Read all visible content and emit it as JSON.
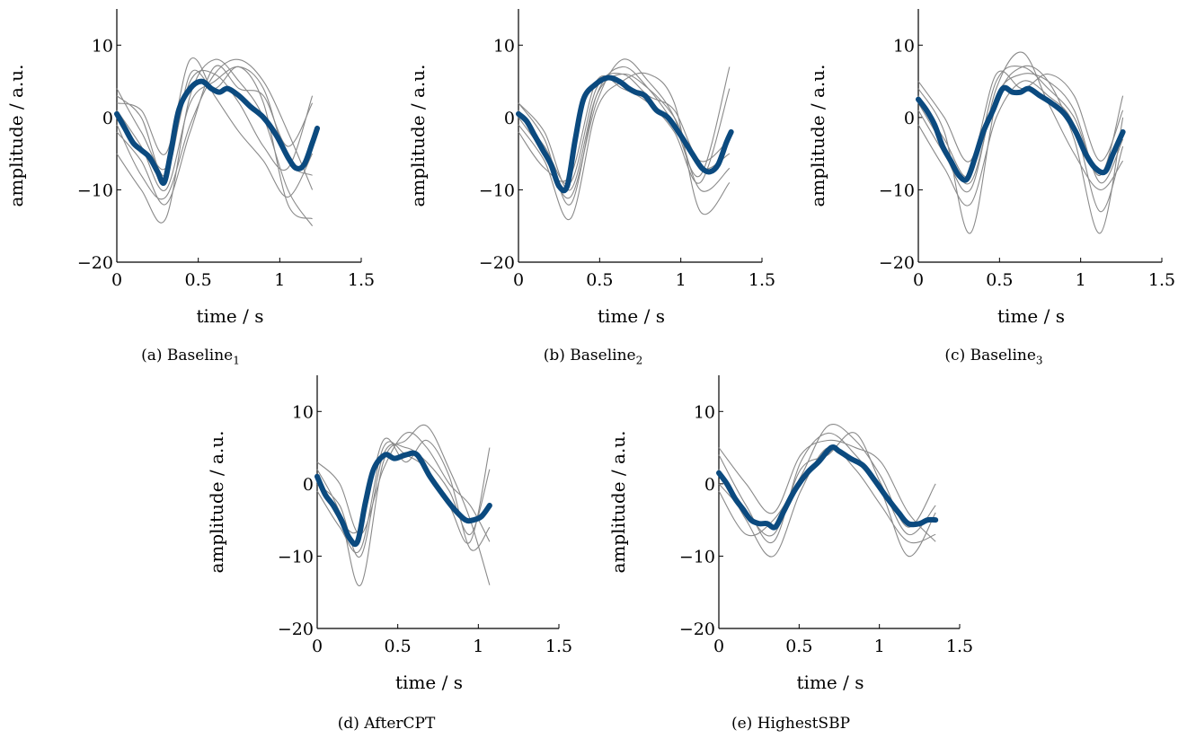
{
  "chart_data": [
    {
      "type": "line",
      "caption_prefix": "(a) Baseline",
      "caption_sub": "1",
      "xlabel": "time / s",
      "ylabel": "amplitude / a.u.",
      "xlim": [
        0,
        1.5
      ],
      "ylim": [
        -20,
        15
      ],
      "xticks": [
        0,
        0.5,
        1,
        1.5
      ],
      "xtick_labels": [
        "0",
        "0.5",
        "1",
        "1.5"
      ],
      "yticks": [
        -20,
        -10,
        0,
        10
      ],
      "ytick_labels": [
        "−20",
        "−10",
        "0",
        "10"
      ],
      "colors": {
        "mean": "#0b4a7f",
        "individual": "#8a8a8a"
      },
      "mean": {
        "x": [
          0,
          0.05,
          0.1,
          0.15,
          0.2,
          0.25,
          0.29,
          0.33,
          0.38,
          0.45,
          0.52,
          0.58,
          0.63,
          0.68,
          0.75,
          0.82,
          0.9,
          0.98,
          1.05,
          1.1,
          1.15,
          1.2,
          1.23
        ],
        "y": [
          0.5,
          -1.5,
          -3.5,
          -4.5,
          -5.5,
          -7.5,
          -9,
          -5,
          1,
          4,
          5,
          4,
          3.5,
          4,
          3,
          1.5,
          0,
          -2.5,
          -5.5,
          -7,
          -6.5,
          -3.5,
          -1.5
        ]
      },
      "individual": [
        {
          "x": [
            0,
            0.15,
            0.3,
            0.45,
            0.6,
            0.75,
            0.9,
            1.05,
            1.2
          ],
          "y": [
            3,
            0,
            -8,
            6,
            4,
            7,
            2,
            -12,
            -14
          ]
        },
        {
          "x": [
            0,
            0.15,
            0.3,
            0.45,
            0.6,
            0.75,
            0.9,
            1.05,
            1.2
          ],
          "y": [
            -2,
            -6,
            -12,
            -2,
            7,
            4,
            3,
            -4,
            2
          ]
        },
        {
          "x": [
            0,
            0.15,
            0.3,
            0.45,
            0.6,
            0.75,
            0.9,
            1.05,
            1.2
          ],
          "y": [
            4,
            -2,
            -7,
            5,
            6,
            2,
            -4,
            -7,
            3
          ]
        },
        {
          "x": [
            0,
            0.15,
            0.3,
            0.45,
            0.6,
            0.75,
            0.9,
            1.05,
            1.2
          ],
          "y": [
            -5,
            -10,
            -14,
            3,
            8,
            5,
            0,
            -10,
            -15
          ]
        },
        {
          "x": [
            0,
            0.15,
            0.3,
            0.45,
            0.6,
            0.75,
            0.9,
            1.05,
            1.2
          ],
          "y": [
            1,
            -4,
            -10,
            2,
            5,
            7,
            4,
            -6,
            -8
          ]
        },
        {
          "x": [
            0,
            0.15,
            0.3,
            0.45,
            0.6,
            0.75,
            0.9,
            1.05,
            1.2
          ],
          "y": [
            2,
            1,
            -5,
            8,
            3,
            -2,
            -6,
            -11,
            -5
          ]
        },
        {
          "x": [
            0,
            0.15,
            0.3,
            0.45,
            0.6,
            0.75,
            0.9,
            1.05,
            1.2
          ],
          "y": [
            -1,
            -8,
            -11,
            -1,
            6,
            8,
            5,
            -2,
            -10
          ]
        }
      ]
    },
    {
      "type": "line",
      "caption_prefix": "(b) Baseline",
      "caption_sub": "2",
      "xlabel": "time / s",
      "ylabel": "amplitude / a.u.",
      "xlim": [
        0,
        1.5
      ],
      "ylim": [
        -20,
        15
      ],
      "xticks": [
        0,
        0.5,
        1,
        1.5
      ],
      "xtick_labels": [
        "0",
        "0.5",
        "1",
        "1.5"
      ],
      "yticks": [
        -20,
        -10,
        0,
        10
      ],
      "ytick_labels": [
        "−20",
        "−10",
        "0",
        "10"
      ],
      "colors": {
        "mean": "#0b4a7f",
        "individual": "#8a8a8a"
      },
      "mean": {
        "x": [
          0,
          0.05,
          0.1,
          0.15,
          0.2,
          0.25,
          0.3,
          0.35,
          0.4,
          0.47,
          0.55,
          0.62,
          0.68,
          0.72,
          0.78,
          0.85,
          0.92,
          1.0,
          1.07,
          1.13,
          1.18,
          1.23,
          1.28,
          1.31
        ],
        "y": [
          0.5,
          -0.5,
          -2.5,
          -4.5,
          -6.5,
          -9.5,
          -9.5,
          -3,
          2.5,
          4.5,
          5.5,
          5,
          4,
          3.5,
          3,
          1,
          0,
          -2.5,
          -5,
          -7,
          -7.5,
          -6.5,
          -3.5,
          -2
        ]
      },
      "individual": [
        {
          "x": [
            0,
            0.16,
            0.32,
            0.48,
            0.64,
            0.8,
            0.96,
            1.12,
            1.3
          ],
          "y": [
            2,
            -3,
            -12,
            3,
            7,
            4,
            -1,
            -8,
            7
          ]
        },
        {
          "x": [
            0,
            0.16,
            0.32,
            0.48,
            0.64,
            0.8,
            0.96,
            1.12,
            1.3
          ],
          "y": [
            -1,
            -6,
            -14,
            1,
            5,
            6,
            2,
            -13,
            -9
          ]
        },
        {
          "x": [
            0,
            0.16,
            0.32,
            0.48,
            0.64,
            0.8,
            0.96,
            1.12,
            1.3
          ],
          "y": [
            1,
            -4,
            -9,
            4,
            6,
            3,
            1,
            -6,
            -3
          ]
        },
        {
          "x": [
            0,
            0.16,
            0.32,
            0.48,
            0.64,
            0.8,
            0.96,
            1.12,
            1.3
          ],
          "y": [
            0,
            -5,
            -11,
            2,
            8,
            5,
            0,
            -10,
            -7
          ]
        },
        {
          "x": [
            0,
            0.16,
            0.32,
            0.48,
            0.64,
            0.8,
            0.96,
            1.12,
            1.3
          ],
          "y": [
            -2,
            -7,
            -8,
            5,
            4,
            2,
            -2,
            -9,
            4
          ]
        },
        {
          "x": [
            0,
            0.16,
            0.32,
            0.48,
            0.64,
            0.8,
            0.96,
            1.12,
            1.3
          ],
          "y": [
            2,
            -2,
            -10,
            3,
            6,
            4,
            0,
            -7,
            -5
          ]
        }
      ]
    },
    {
      "type": "line",
      "caption_prefix": "(c) Baseline",
      "caption_sub": "3",
      "xlabel": "time / s",
      "ylabel": "amplitude / a.u.",
      "xlim": [
        0,
        1.5
      ],
      "ylim": [
        -20,
        15
      ],
      "xticks": [
        0,
        0.5,
        1,
        1.5
      ],
      "xtick_labels": [
        "0",
        "0.5",
        "1",
        "1.5"
      ],
      "yticks": [
        -20,
        -10,
        0,
        10
      ],
      "ytick_labels": [
        "−20",
        "−10",
        "0",
        "10"
      ],
      "colors": {
        "mean": "#0b4a7f",
        "individual": "#8a8a8a"
      },
      "mean": {
        "x": [
          0,
          0.05,
          0.1,
          0.15,
          0.2,
          0.25,
          0.3,
          0.35,
          0.4,
          0.46,
          0.52,
          0.58,
          0.63,
          0.68,
          0.75,
          0.82,
          0.9,
          0.97,
          1.03,
          1.09,
          1.15,
          1.2,
          1.26
        ],
        "y": [
          2.5,
          1,
          -1,
          -4,
          -6,
          -8,
          -8.5,
          -5.5,
          -2,
          1,
          4,
          3.5,
          3.5,
          4,
          3,
          2,
          0.5,
          -2,
          -5,
          -7,
          -7.5,
          -5,
          -2
        ]
      },
      "individual": [
        {
          "x": [
            0,
            0.16,
            0.32,
            0.48,
            0.64,
            0.8,
            0.96,
            1.12,
            1.26
          ],
          "y": [
            4,
            -2,
            -16,
            2,
            7,
            5,
            -3,
            -16,
            0
          ]
        },
        {
          "x": [
            0,
            0.16,
            0.32,
            0.48,
            0.64,
            0.8,
            0.96,
            1.12,
            1.26
          ],
          "y": [
            1,
            -5,
            -10,
            4,
            9,
            2,
            -5,
            -10,
            -6
          ]
        },
        {
          "x": [
            0,
            0.16,
            0.32,
            0.48,
            0.64,
            0.8,
            0.96,
            1.12,
            1.26
          ],
          "y": [
            5,
            0,
            -6,
            6,
            4,
            6,
            3,
            -6,
            1
          ]
        },
        {
          "x": [
            0,
            0.16,
            0.32,
            0.48,
            0.64,
            0.8,
            0.96,
            1.12,
            1.26
          ],
          "y": [
            -1,
            -7,
            -12,
            0,
            5,
            3,
            -1,
            -13,
            -4
          ]
        },
        {
          "x": [
            0,
            0.16,
            0.32,
            0.48,
            0.64,
            0.8,
            0.96,
            1.12,
            1.26
          ],
          "y": [
            3,
            -3,
            -8,
            5,
            7,
            4,
            0,
            -8,
            3
          ]
        },
        {
          "x": [
            0,
            0.16,
            0.32,
            0.48,
            0.64,
            0.8,
            0.96,
            1.12,
            1.26
          ],
          "y": [
            2,
            -4,
            -9,
            3,
            6,
            5,
            1,
            -9,
            -3
          ]
        }
      ]
    },
    {
      "type": "line",
      "caption_prefix": "(d) AfterCPT",
      "caption_sub": "",
      "xlabel": "time / s",
      "ylabel": "amplitude / a.u.",
      "xlim": [
        0,
        1.5
      ],
      "ylim": [
        -20,
        15
      ],
      "xticks": [
        0,
        0.5,
        1,
        1.5
      ],
      "xtick_labels": [
        "0",
        "0.5",
        "1",
        "1.5"
      ],
      "yticks": [
        -20,
        -10,
        0,
        10
      ],
      "ytick_labels": [
        "−20",
        "−10",
        "0",
        "10"
      ],
      "colors": {
        "mean": "#0b4a7f",
        "individual": "#8a8a8a"
      },
      "mean": {
        "x": [
          0,
          0.05,
          0.1,
          0.15,
          0.2,
          0.25,
          0.3,
          0.35,
          0.42,
          0.48,
          0.55,
          0.62,
          0.7,
          0.78,
          0.85,
          0.92,
          0.97,
          1.02,
          1.07
        ],
        "y": [
          1,
          -1.5,
          -3,
          -5,
          -7.5,
          -8,
          -2.5,
          2,
          4,
          3.5,
          4,
          4,
          1,
          -1.5,
          -3.5,
          -5,
          -5,
          -4.5,
          -3
        ]
      },
      "individual": [
        {
          "x": [
            0,
            0.14,
            0.27,
            0.41,
            0.55,
            0.68,
            0.82,
            0.95,
            1.07
          ],
          "y": [
            2,
            -4,
            -14,
            3,
            6,
            8,
            2,
            -5,
            -14
          ]
        },
        {
          "x": [
            0,
            0.14,
            0.27,
            0.41,
            0.55,
            0.68,
            0.82,
            0.95,
            1.07
          ],
          "y": [
            -1,
            -6,
            -9,
            5,
            4,
            2,
            -3,
            -8,
            5
          ]
        },
        {
          "x": [
            0,
            0.14,
            0.27,
            0.41,
            0.55,
            0.68,
            0.82,
            0.95,
            1.07
          ],
          "y": [
            3,
            0,
            -7,
            2,
            7,
            5,
            0,
            -3,
            -8
          ]
        },
        {
          "x": [
            0,
            0.14,
            0.27,
            0.41,
            0.55,
            0.68,
            0.82,
            0.95,
            1.07
          ],
          "y": [
            0,
            -3,
            -10,
            4,
            5,
            3,
            -1,
            -7,
            2
          ]
        },
        {
          "x": [
            0,
            0.14,
            0.27,
            0.41,
            0.55,
            0.68,
            0.82,
            0.95,
            1.07
          ],
          "y": [
            1,
            -5,
            -6,
            6,
            3,
            6,
            1,
            -9,
            -6
          ]
        }
      ]
    },
    {
      "type": "line",
      "caption_prefix": "(e) HighestSBP",
      "caption_sub": "",
      "xlabel": "time / s",
      "ylabel": "amplitude / a.u.",
      "xlim": [
        0,
        1.5
      ],
      "ylim": [
        -20,
        15
      ],
      "xticks": [
        0,
        0.5,
        1,
        1.5
      ],
      "xtick_labels": [
        "0",
        "0.5",
        "1",
        "1.5"
      ],
      "yticks": [
        -20,
        -10,
        0,
        10
      ],
      "ytick_labels": [
        "−20",
        "−10",
        "0",
        "10"
      ],
      "colors": {
        "mean": "#0b4a7f",
        "individual": "#8a8a8a"
      },
      "mean": {
        "x": [
          0,
          0.05,
          0.1,
          0.15,
          0.2,
          0.25,
          0.3,
          0.35,
          0.4,
          0.47,
          0.55,
          0.62,
          0.7,
          0.75,
          0.82,
          0.9,
          0.97,
          1.05,
          1.12,
          1.18,
          1.25,
          1.3,
          1.35
        ],
        "y": [
          1.5,
          0,
          -2,
          -3.5,
          -5,
          -5.5,
          -5.5,
          -6,
          -4,
          -1,
          1.5,
          3,
          5,
          4.5,
          3.5,
          2.5,
          0.5,
          -2,
          -4,
          -5.5,
          -5.5,
          -5,
          -5
        ]
      },
      "individual": [
        {
          "x": [
            0,
            0.17,
            0.34,
            0.51,
            0.68,
            0.85,
            1.01,
            1.18,
            1.35
          ],
          "y": [
            4,
            -3,
            -8,
            3,
            7,
            4,
            -1,
            -10,
            -4
          ]
        },
        {
          "x": [
            0,
            0.17,
            0.34,
            0.51,
            0.68,
            0.85,
            1.01,
            1.18,
            1.35
          ],
          "y": [
            -1,
            -7,
            -5,
            1,
            8,
            6,
            1,
            -6,
            0
          ]
        },
        {
          "x": [
            0,
            0.17,
            0.34,
            0.51,
            0.68,
            0.85,
            1.01,
            1.18,
            1.35
          ],
          "y": [
            2,
            -5,
            -10,
            -1,
            5,
            2,
            -3,
            -8,
            -7
          ]
        },
        {
          "x": [
            0,
            0.17,
            0.34,
            0.51,
            0.68,
            0.85,
            1.01,
            1.18,
            1.35
          ],
          "y": [
            5,
            0,
            -4,
            4,
            6,
            5,
            3,
            -4,
            -8
          ]
        },
        {
          "x": [
            0,
            0.17,
            0.34,
            0.51,
            0.68,
            0.85,
            1.01,
            1.18,
            1.35
          ],
          "y": [
            0,
            -4,
            -7,
            2,
            4,
            7,
            0,
            -7,
            -3
          ]
        }
      ]
    }
  ]
}
